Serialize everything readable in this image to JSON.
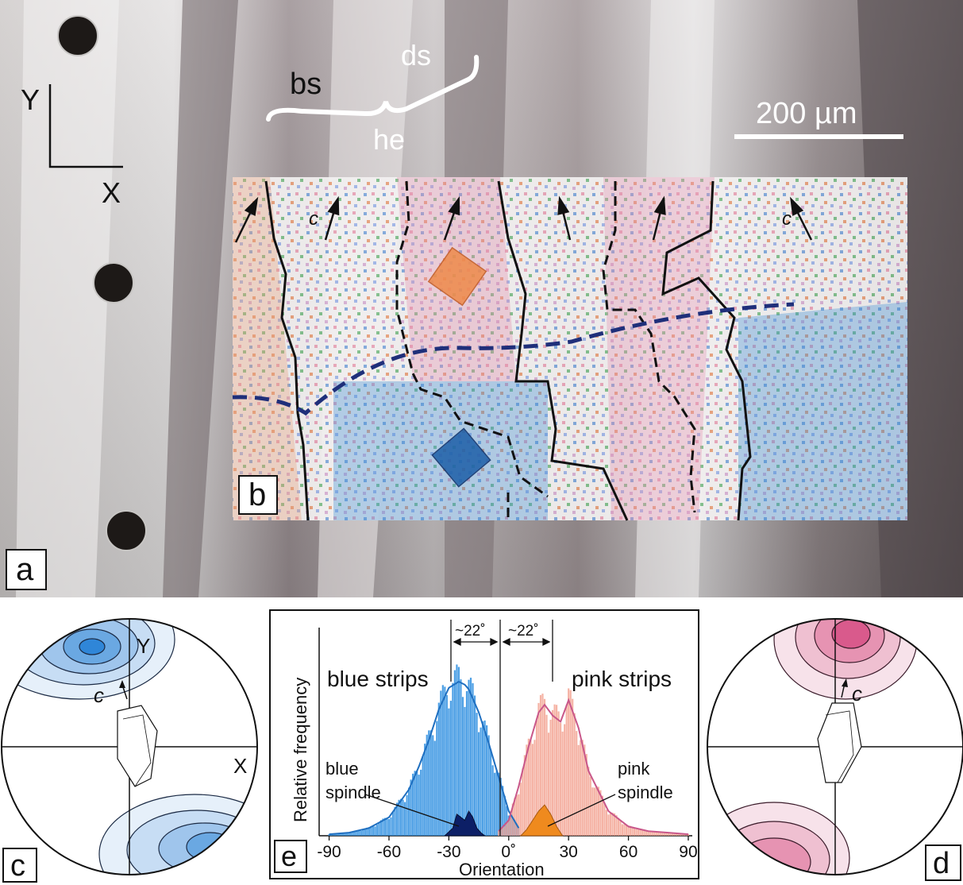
{
  "figure": {
    "panel_labels": {
      "a": "a",
      "b": "b",
      "c": "c",
      "d": "d",
      "e": "e"
    },
    "photo": {
      "axis_y": "Y",
      "axis_x": "X",
      "brace_top": "ds",
      "brace_left": "bs",
      "brace_bottom": "he",
      "scale_bar": "200 µm",
      "c_axis_label": "c"
    },
    "stereonet_c": {
      "y_label": "Y",
      "x_label": "X",
      "c_label": "c"
    },
    "stereonet_d": {
      "c_label": "c"
    },
    "colors": {
      "blue": "#2f8fe0",
      "dark_blue": "#0c1f66",
      "pink": "#f2a08e",
      "pink_line": "#c8578a",
      "orange": "#ef8a1e",
      "dashed_boundary": "#1f2f7a"
    }
  },
  "chart_data": {
    "type": "bar",
    "xlabel": "Orientation",
    "ylabel": "Relative frequency",
    "xlim": [
      -95,
      92
    ],
    "x_ticks": [
      {
        "value": -90,
        "label": "-90"
      },
      {
        "value": -60,
        "label": "-60"
      },
      {
        "value": -30,
        "label": "-30"
      },
      {
        "value": 0,
        "label": "0˚"
      },
      {
        "value": 30,
        "label": "30"
      },
      {
        "value": 60,
        "label": "60"
      },
      {
        "value": 90,
        "label": "90"
      }
    ],
    "annotations": {
      "left_angle": "~22˚",
      "right_angle": "~22˚",
      "blue_strips": "blue strips",
      "pink_strips": "pink strips",
      "blue_spindle_line1": "blue",
      "blue_spindle_line2": "spindle",
      "pink_spindle_line1": "pink",
      "pink_spindle_line2": "spindle"
    },
    "series": [
      {
        "name": "blue strips",
        "color": "#2f8fe0",
        "x": [
          -90,
          -80,
          -70,
          -60,
          -50,
          -45,
          -40,
          -35,
          -30,
          -25,
          -22,
          -20,
          -15,
          -10,
          -5,
          0,
          5
        ],
        "values": [
          0.01,
          0.02,
          0.05,
          0.12,
          0.3,
          0.45,
          0.62,
          0.82,
          0.96,
          1.0,
          0.98,
          0.95,
          0.8,
          0.6,
          0.38,
          0.16,
          0.05
        ]
      },
      {
        "name": "pink strips",
        "color": "#f2a08e",
        "x": [
          -5,
          0,
          5,
          10,
          15,
          18,
          22,
          26,
          30,
          35,
          40,
          50,
          60,
          70,
          80,
          90
        ],
        "values": [
          0.03,
          0.1,
          0.32,
          0.58,
          0.8,
          0.85,
          0.78,
          0.74,
          0.88,
          0.7,
          0.42,
          0.16,
          0.06,
          0.03,
          0.02,
          0.01
        ]
      },
      {
        "name": "blue spindle",
        "color": "#0c1f66",
        "x": [
          -32,
          -28,
          -26,
          -24,
          -22,
          -20,
          -18,
          -16,
          -14,
          -12
        ],
        "values": [
          0.0,
          0.05,
          0.14,
          0.12,
          0.1,
          0.16,
          0.12,
          0.05,
          0.02,
          0.0
        ]
      },
      {
        "name": "pink spindle",
        "color": "#ef8a1e",
        "x": [
          6,
          9,
          12,
          15,
          18,
          21,
          24,
          27
        ],
        "values": [
          0.0,
          0.04,
          0.1,
          0.16,
          0.2,
          0.14,
          0.06,
          0.0
        ]
      }
    ]
  }
}
